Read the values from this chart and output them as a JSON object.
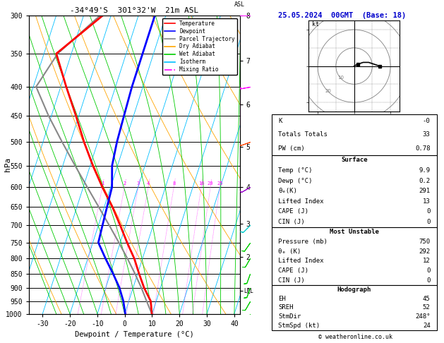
{
  "title_left": "-34°49'S  301°32'W  21m ASL",
  "title_right": "25.05.2024  00GMT  (Base: 18)",
  "xlabel": "Dewpoint / Temperature (°C)",
  "ylabel_left": "hPa",
  "pressure_ticks": [
    300,
    350,
    400,
    450,
    500,
    550,
    600,
    650,
    700,
    750,
    800,
    850,
    900,
    950,
    1000
  ],
  "temp_range": [
    -35,
    42
  ],
  "temp_ticks": [
    -30,
    -20,
    -10,
    0,
    10,
    20,
    30,
    40
  ],
  "km_ticks": [
    1,
    2,
    3,
    4,
    5,
    6,
    7,
    8
  ],
  "km_pressures": [
    910,
    795,
    695,
    600,
    510,
    430,
    360,
    300
  ],
  "lcl_pressure": 912,
  "temperature_profile": {
    "pressure": [
      1000,
      950,
      900,
      850,
      800,
      750,
      700,
      650,
      600,
      550,
      500,
      450,
      400,
      350,
      300
    ],
    "temp": [
      9.9,
      8.0,
      4.0,
      0.5,
      -3.0,
      -7.5,
      -12.0,
      -17.0,
      -23.0,
      -29.0,
      -35.0,
      -41.0,
      -48.0,
      -55.5,
      -43.0
    ]
  },
  "dewpoint_profile": {
    "pressure": [
      1000,
      950,
      900,
      850,
      800,
      750,
      700,
      650,
      600,
      550,
      500,
      450,
      400,
      350,
      300
    ],
    "temp": [
      0.2,
      -2.0,
      -5.0,
      -9.0,
      -13.5,
      -18.0,
      -18.5,
      -19.0,
      -19.5,
      -22.0,
      -23.0,
      -23.5,
      -24.0,
      -24.0,
      -24.0
    ]
  },
  "parcel_profile": {
    "pressure": [
      1000,
      950,
      900,
      850,
      800,
      750,
      700,
      650,
      600,
      550,
      500,
      450,
      400,
      350,
      300
    ],
    "temp": [
      9.9,
      6.5,
      3.0,
      -1.0,
      -5.5,
      -10.5,
      -16.0,
      -22.0,
      -28.5,
      -35.5,
      -43.0,
      -51.0,
      -59.0,
      -55.0,
      -44.0
    ]
  },
  "background_color": "#ffffff",
  "isotherm_color": "#00bfff",
  "dry_adiabat_color": "#ffa500",
  "wet_adiabat_color": "#00cc00",
  "mixing_ratio_color": "#ff00ff",
  "temp_color": "#ff0000",
  "dewpoint_color": "#0000ff",
  "parcel_color": "#888888",
  "legend_items": [
    {
      "label": "Temperature",
      "color": "#ff0000",
      "style": "-"
    },
    {
      "label": "Dewpoint",
      "color": "#0000ff",
      "style": "-"
    },
    {
      "label": "Parcel Trajectory",
      "color": "#888888",
      "style": "-"
    },
    {
      "label": "Dry Adiabat",
      "color": "#ffa500",
      "style": "-"
    },
    {
      "label": "Wet Adiabat",
      "color": "#00cc00",
      "style": "-"
    },
    {
      "label": "Isotherm",
      "color": "#00bfff",
      "style": "-"
    },
    {
      "label": "Mixing Ratio",
      "color": "#ff00ff",
      "style": "-."
    }
  ],
  "stats": {
    "K": "-0",
    "Totals_Totals": "33",
    "PW_cm": "0.78",
    "Surface_Temp": "9.9",
    "Surface_Dewp": "0.2",
    "Surface_ThetaE": "291",
    "Surface_LI": "13",
    "Surface_CAPE": "0",
    "Surface_CIN": "0",
    "MU_Pressure": "750",
    "MU_ThetaE": "292",
    "MU_LI": "12",
    "MU_CAPE": "0",
    "MU_CIN": "0",
    "EH": "45",
    "SREH": "52",
    "StmDir": "248°",
    "StmSpd": "24"
  },
  "wind_barbs": [
    {
      "pressure": 1000,
      "spd": 8,
      "dir": 200,
      "color": "#00cc00"
    },
    {
      "pressure": 950,
      "spd": 8,
      "dir": 210,
      "color": "#00cc00"
    },
    {
      "pressure": 900,
      "spd": 10,
      "dir": 200,
      "color": "#00cc00"
    },
    {
      "pressure": 850,
      "spd": 10,
      "dir": 200,
      "color": "#00cc00"
    },
    {
      "pressure": 800,
      "spd": 10,
      "dir": 210,
      "color": "#00cc00"
    },
    {
      "pressure": 750,
      "spd": 8,
      "dir": 215,
      "color": "#00cc00"
    },
    {
      "pressure": 700,
      "spd": 8,
      "dir": 225,
      "color": "#00cccc"
    },
    {
      "pressure": 600,
      "spd": 10,
      "dir": 240,
      "color": "#9900cc"
    },
    {
      "pressure": 500,
      "spd": 12,
      "dir": 250,
      "color": "#ff4400"
    },
    {
      "pressure": 400,
      "spd": 15,
      "dir": 260,
      "color": "#ff00ff"
    },
    {
      "pressure": 300,
      "spd": 20,
      "dir": 270,
      "color": "#ff00ff"
    }
  ]
}
